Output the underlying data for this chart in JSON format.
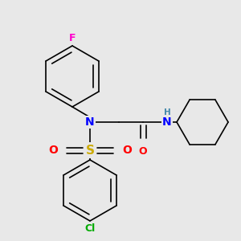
{
  "bg_color": "#e8e8e8",
  "atom_colors": {
    "F": "#ff00cc",
    "Cl": "#00aa00",
    "N": "#0000ff",
    "O": "#ff0000",
    "S": "#ccaa00",
    "H": "#4488aa",
    "C": "#000000"
  },
  "bond_color": "#000000",
  "line_width": 1.2,
  "figsize": [
    3.0,
    3.0
  ],
  "dpi": 100
}
